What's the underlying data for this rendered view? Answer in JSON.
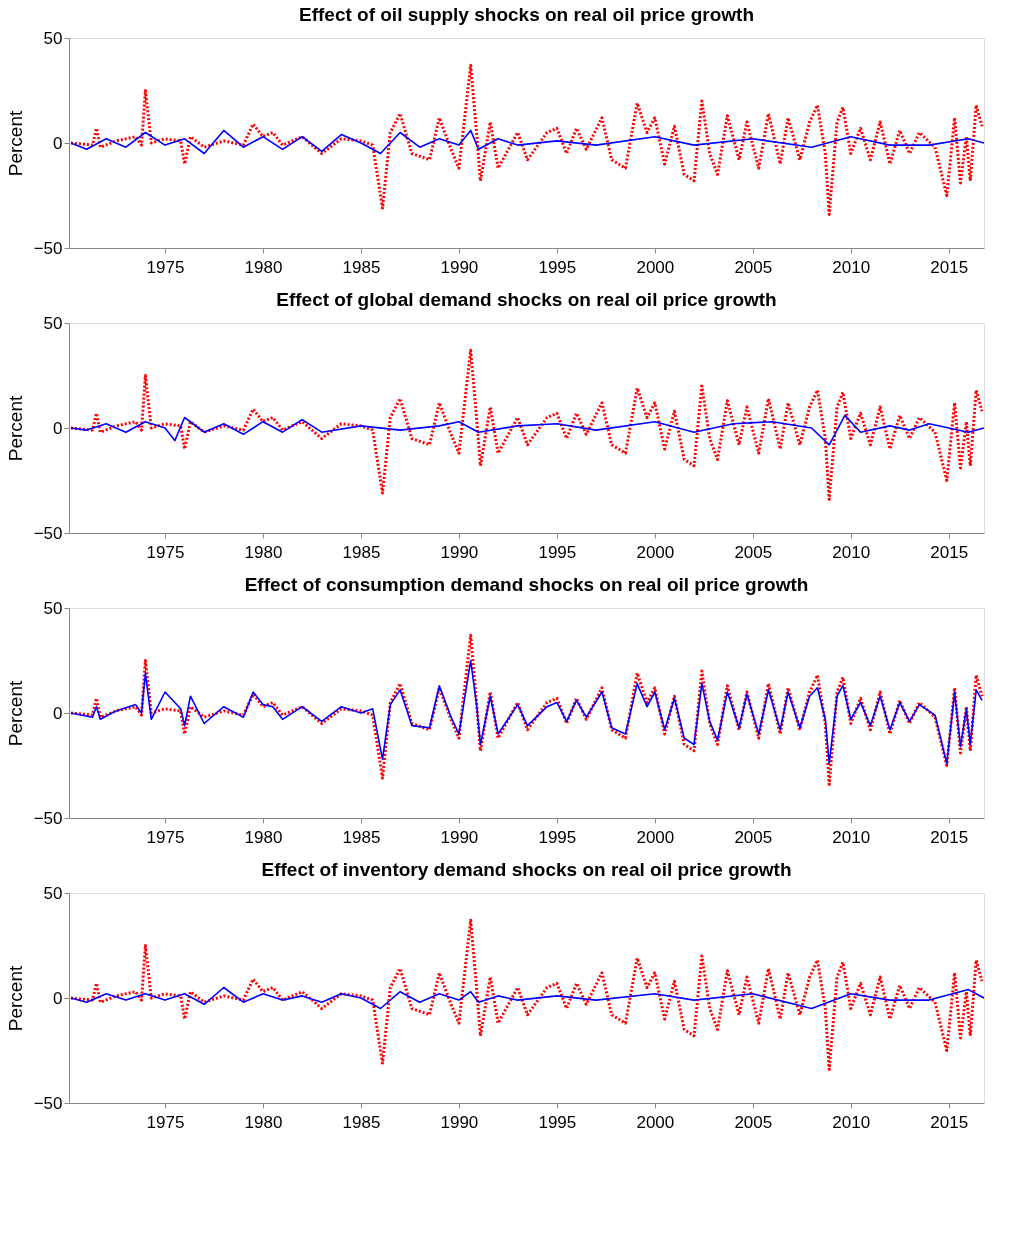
{
  "chart_data": [
    {
      "type": "line",
      "title": "Effect of oil supply shocks on real oil price growth",
      "ylabel": "Percent",
      "xlim": [
        1970.1,
        2016.8
      ],
      "ylim": [
        -50,
        50
      ],
      "xticks": [
        1975,
        1980,
        1985,
        1990,
        1995,
        2000,
        2005,
        2010,
        2015
      ],
      "yticks": [
        -50,
        0,
        50
      ],
      "grid": false,
      "series": [
        {
          "color": "#ff0000",
          "line_style": "dotted",
          "x": [
            1970.2,
            1971.3,
            1971.5,
            1971.7,
            1972.5,
            1973.5,
            1973.8,
            1974.0,
            1974.3,
            1975.0,
            1975.8,
            1976.0,
            1976.3,
            1977.0,
            1978.0,
            1979.0,
            1979.5,
            1980.0,
            1980.5,
            1981.0,
            1982.0,
            1983.0,
            1984.0,
            1985.0,
            1985.6,
            1986.1,
            1986.5,
            1987.0,
            1987.6,
            1988.5,
            1989.0,
            1989.6,
            1990.0,
            1990.6,
            1990.9,
            1991.1,
            1991.6,
            1992.0,
            1993.0,
            1993.5,
            1994.5,
            1995.0,
            1995.5,
            1996.0,
            1996.5,
            1997.3,
            1997.8,
            1998.5,
            1999.1,
            1999.6,
            2000.0,
            2000.5,
            2001.0,
            2001.5,
            2002.0,
            2002.4,
            2002.8,
            2003.2,
            2003.7,
            2004.3,
            2004.7,
            2005.3,
            2005.8,
            2006.4,
            2006.8,
            2007.4,
            2007.9,
            2008.3,
            2008.7,
            2008.9,
            2009.3,
            2009.6,
            2010.0,
            2010.5,
            2011.0,
            2011.5,
            2012.0,
            2012.5,
            2013.0,
            2013.5,
            2014.3,
            2014.9,
            2015.3,
            2015.6,
            2015.9,
            2016.1,
            2016.4,
            2016.7
          ],
          "values": [
            0,
            -1,
            7,
            -2,
            1,
            3,
            -1,
            25,
            0,
            2,
            1,
            -10,
            3,
            -2,
            1,
            -1,
            9,
            3,
            5,
            -1,
            3,
            -5,
            2,
            1,
            -1,
            -31,
            5,
            14,
            -5,
            -8,
            12,
            -3,
            -12,
            37,
            5,
            -18,
            10,
            -12,
            5,
            -8,
            5,
            7,
            -5,
            7,
            -3,
            12,
            -8,
            -12,
            19,
            5,
            12,
            -10,
            8,
            -15,
            -18,
            20,
            -5,
            -15,
            13,
            -8,
            10,
            -12,
            14,
            -10,
            12,
            -8,
            10,
            18,
            -5,
            -34,
            10,
            17,
            -5,
            7,
            -8,
            10,
            -10,
            6,
            -5,
            5,
            -2,
            -25,
            12,
            -19,
            3,
            -18,
            18,
            8
          ]
        },
        {
          "color": "#0000ff",
          "line_style": "solid",
          "x": [
            1970.2,
            1971,
            1972,
            1973,
            1974,
            1975,
            1976,
            1977,
            1978,
            1979,
            1980,
            1981,
            1982,
            1983,
            1984,
            1985,
            1986,
            1987,
            1988,
            1989,
            1990,
            1990.6,
            1991,
            1992,
            1993,
            1995,
            1997,
            2000,
            2002,
            2005,
            2008,
            2010,
            2012,
            2014,
            2016,
            2016.8
          ],
          "values": [
            0,
            -3,
            2,
            -2,
            5,
            -1,
            2,
            -5,
            6,
            -2,
            3,
            -3,
            3,
            -4,
            4,
            0,
            -5,
            5,
            -2,
            2,
            -1,
            6,
            -3,
            2,
            -1,
            1,
            -1,
            3,
            -1,
            2,
            -2,
            3,
            -1,
            -1,
            2,
            0
          ]
        }
      ]
    },
    {
      "type": "line",
      "title": "Effect of global demand shocks on real oil price growth",
      "ylabel": "Percent",
      "xlim": [
        1970.1,
        2016.8
      ],
      "ylim": [
        -50,
        50
      ],
      "xticks": [
        1975,
        1980,
        1985,
        1990,
        1995,
        2000,
        2005,
        2010,
        2015
      ],
      "yticks": [
        -50,
        0,
        50
      ],
      "grid": false,
      "series": [
        {
          "color": "#ff0000",
          "line_style": "dotted",
          "x": [
            1970.2,
            1971.3,
            1971.5,
            1971.7,
            1972.5,
            1973.5,
            1973.8,
            1974.0,
            1974.3,
            1975.0,
            1975.8,
            1976.0,
            1976.3,
            1977.0,
            1978.0,
            1979.0,
            1979.5,
            1980.0,
            1980.5,
            1981.0,
            1982.0,
            1983.0,
            1984.0,
            1985.0,
            1985.6,
            1986.1,
            1986.5,
            1987.0,
            1987.6,
            1988.5,
            1989.0,
            1989.6,
            1990.0,
            1990.6,
            1990.9,
            1991.1,
            1991.6,
            1992.0,
            1993.0,
            1993.5,
            1994.5,
            1995.0,
            1995.5,
            1996.0,
            1996.5,
            1997.3,
            1997.8,
            1998.5,
            1999.1,
            1999.6,
            2000.0,
            2000.5,
            2001.0,
            2001.5,
            2002.0,
            2002.4,
            2002.8,
            2003.2,
            2003.7,
            2004.3,
            2004.7,
            2005.3,
            2005.8,
            2006.4,
            2006.8,
            2007.4,
            2007.9,
            2008.3,
            2008.7,
            2008.9,
            2009.3,
            2009.6,
            2010.0,
            2010.5,
            2011.0,
            2011.5,
            2012.0,
            2012.5,
            2013.0,
            2013.5,
            2014.3,
            2014.9,
            2015.3,
            2015.6,
            2015.9,
            2016.1,
            2016.4,
            2016.7
          ],
          "values": [
            0,
            -1,
            7,
            -2,
            1,
            3,
            -1,
            25,
            0,
            2,
            1,
            -10,
            3,
            -2,
            1,
            -1,
            9,
            3,
            5,
            -1,
            3,
            -5,
            2,
            1,
            -1,
            -31,
            5,
            14,
            -5,
            -8,
            12,
            -3,
            -12,
            37,
            5,
            -18,
            10,
            -12,
            5,
            -8,
            5,
            7,
            -5,
            7,
            -3,
            12,
            -8,
            -12,
            19,
            5,
            12,
            -10,
            8,
            -15,
            -18,
            20,
            -5,
            -15,
            13,
            -8,
            10,
            -12,
            14,
            -10,
            12,
            -8,
            10,
            18,
            -5,
            -34,
            10,
            17,
            -5,
            7,
            -8,
            10,
            -10,
            6,
            -5,
            5,
            -2,
            -25,
            12,
            -19,
            3,
            -18,
            18,
            8
          ]
        },
        {
          "color": "#0000ff",
          "line_style": "solid",
          "x": [
            1970.2,
            1971,
            1972,
            1973,
            1974,
            1975,
            1975.5,
            1976,
            1977,
            1978,
            1979,
            1980,
            1981,
            1982,
            1983,
            1985,
            1987,
            1989,
            1990,
            1991,
            1993,
            1995,
            1997,
            2000,
            2002,
            2004,
            2006,
            2008,
            2008.9,
            2009.7,
            2010.5,
            2012,
            2013,
            2014,
            2016,
            2016.8
          ],
          "values": [
            0,
            -1,
            2,
            -2,
            3,
            0,
            -6,
            5,
            -2,
            2,
            -3,
            3,
            -2,
            4,
            -2,
            1,
            -1,
            1,
            3,
            -2,
            1,
            2,
            -1,
            3,
            -2,
            2,
            3,
            0,
            -8,
            6,
            -2,
            1,
            -1,
            2,
            -2,
            0
          ]
        }
      ]
    },
    {
      "type": "line",
      "title": "Effect of consumption demand shocks on real oil price growth",
      "ylabel": "Percent",
      "xlim": [
        1970.1,
        2016.8
      ],
      "ylim": [
        -50,
        50
      ],
      "xticks": [
        1975,
        1980,
        1985,
        1990,
        1995,
        2000,
        2005,
        2010,
        2015
      ],
      "yticks": [
        -50,
        0,
        50
      ],
      "grid": false,
      "series": [
        {
          "color": "#ff0000",
          "line_style": "dotted",
          "x": [
            1970.2,
            1971.3,
            1971.5,
            1971.7,
            1972.5,
            1973.5,
            1973.8,
            1974.0,
            1974.3,
            1975.0,
            1975.8,
            1976.0,
            1976.3,
            1977.0,
            1978.0,
            1979.0,
            1979.5,
            1980.0,
            1980.5,
            1981.0,
            1982.0,
            1983.0,
            1984.0,
            1985.0,
            1985.6,
            1986.1,
            1986.5,
            1987.0,
            1987.6,
            1988.5,
            1989.0,
            1989.6,
            1990.0,
            1990.6,
            1990.9,
            1991.1,
            1991.6,
            1992.0,
            1993.0,
            1993.5,
            1994.5,
            1995.0,
            1995.5,
            1996.0,
            1996.5,
            1997.3,
            1997.8,
            1998.5,
            1999.1,
            1999.6,
            2000.0,
            2000.5,
            2001.0,
            2001.5,
            2002.0,
            2002.4,
            2002.8,
            2003.2,
            2003.7,
            2004.3,
            2004.7,
            2005.3,
            2005.8,
            2006.4,
            2006.8,
            2007.4,
            2007.9,
            2008.3,
            2008.7,
            2008.9,
            2009.3,
            2009.6,
            2010.0,
            2010.5,
            2011.0,
            2011.5,
            2012.0,
            2012.5,
            2013.0,
            2013.5,
            2014.3,
            2014.9,
            2015.3,
            2015.6,
            2015.9,
            2016.1,
            2016.4,
            2016.7
          ],
          "values": [
            0,
            -1,
            7,
            -2,
            1,
            3,
            -1,
            25,
            0,
            2,
            1,
            -10,
            3,
            -2,
            1,
            -1,
            9,
            3,
            5,
            -1,
            3,
            -5,
            2,
            1,
            -1,
            -31,
            5,
            14,
            -5,
            -8,
            12,
            -3,
            -12,
            37,
            5,
            -18,
            10,
            -12,
            5,
            -8,
            5,
            7,
            -5,
            7,
            -3,
            12,
            -8,
            -12,
            19,
            5,
            12,
            -10,
            8,
            -15,
            -18,
            20,
            -5,
            -15,
            13,
            -8,
            10,
            -12,
            14,
            -10,
            12,
            -8,
            10,
            18,
            -5,
            -34,
            10,
            17,
            -5,
            7,
            -8,
            10,
            -10,
            6,
            -5,
            5,
            -2,
            -25,
            12,
            -19,
            3,
            -18,
            18,
            8
          ]
        },
        {
          "color": "#0000ff",
          "line_style": "solid",
          "x": [
            1970.2,
            1971.3,
            1971.5,
            1971.7,
            1972.5,
            1973.5,
            1973.8,
            1974.0,
            1974.3,
            1975.0,
            1975.8,
            1976.0,
            1976.3,
            1977.0,
            1978.0,
            1979.0,
            1979.5,
            1980.0,
            1980.5,
            1981.0,
            1982.0,
            1983.0,
            1984.0,
            1985.0,
            1985.6,
            1986.1,
            1986.5,
            1987.0,
            1987.6,
            1988.5,
            1989.0,
            1989.6,
            1990.0,
            1990.6,
            1990.9,
            1991.1,
            1991.6,
            1992.0,
            1993.0,
            1993.5,
            1994.5,
            1995.0,
            1995.5,
            1996.0,
            1996.5,
            1997.3,
            1997.8,
            1998.5,
            1999.1,
            1999.6,
            2000.0,
            2000.5,
            2001.0,
            2001.5,
            2002.0,
            2002.4,
            2002.8,
            2003.2,
            2003.7,
            2004.3,
            2004.7,
            2005.3,
            2005.8,
            2006.4,
            2006.8,
            2007.4,
            2007.9,
            2008.3,
            2008.7,
            2008.9,
            2009.3,
            2009.6,
            2010.0,
            2010.5,
            2011.0,
            2011.5,
            2012.0,
            2012.5,
            2013.0,
            2013.5,
            2014.3,
            2014.9,
            2015.3,
            2015.6,
            2015.9,
            2016.1,
            2016.4,
            2016.7
          ],
          "values": [
            0,
            -2,
            3,
            -3,
            1,
            4,
            0,
            19,
            -3,
            10,
            2,
            -6,
            8,
            -5,
            3,
            -2,
            10,
            4,
            3,
            -3,
            3,
            -4,
            3,
            0,
            2,
            -22,
            4,
            11,
            -6,
            -7,
            13,
            -2,
            -10,
            25,
            4,
            -15,
            8,
            -10,
            4,
            -6,
            3,
            5,
            -4,
            6,
            -2,
            10,
            -7,
            -10,
            14,
            3,
            10,
            -8,
            7,
            -12,
            -15,
            14,
            -4,
            -13,
            10,
            -7,
            9,
            -10,
            11,
            -8,
            10,
            -7,
            8,
            12,
            -3,
            -24,
            8,
            13,
            -3,
            5,
            -6,
            8,
            -8,
            5,
            -4,
            4,
            -1,
            -24,
            10,
            -16,
            2,
            -15,
            11,
            6
          ]
        }
      ]
    },
    {
      "type": "line",
      "title": "Effect of inventory demand shocks on real oil price growth",
      "ylabel": "Percent",
      "xlim": [
        1970.1,
        2016.8
      ],
      "ylim": [
        -50,
        50
      ],
      "xticks": [
        1975,
        1980,
        1985,
        1990,
        1995,
        2000,
        2005,
        2010,
        2015
      ],
      "yticks": [
        -50,
        0,
        50
      ],
      "grid": false,
      "series": [
        {
          "color": "#ff0000",
          "line_style": "dotted",
          "x": [
            1970.2,
            1971.3,
            1971.5,
            1971.7,
            1972.5,
            1973.5,
            1973.8,
            1974.0,
            1974.3,
            1975.0,
            1975.8,
            1976.0,
            1976.3,
            1977.0,
            1978.0,
            1979.0,
            1979.5,
            1980.0,
            1980.5,
            1981.0,
            1982.0,
            1983.0,
            1984.0,
            1985.0,
            1985.6,
            1986.1,
            1986.5,
            1987.0,
            1987.6,
            1988.5,
            1989.0,
            1989.6,
            1990.0,
            1990.6,
            1990.9,
            1991.1,
            1991.6,
            1992.0,
            1993.0,
            1993.5,
            1994.5,
            1995.0,
            1995.5,
            1996.0,
            1996.5,
            1997.3,
            1997.8,
            1998.5,
            1999.1,
            1999.6,
            2000.0,
            2000.5,
            2001.0,
            2001.5,
            2002.0,
            2002.4,
            2002.8,
            2003.2,
            2003.7,
            2004.3,
            2004.7,
            2005.3,
            2005.8,
            2006.4,
            2006.8,
            2007.4,
            2007.9,
            2008.3,
            2008.7,
            2008.9,
            2009.3,
            2009.6,
            2010.0,
            2010.5,
            2011.0,
            2011.5,
            2012.0,
            2012.5,
            2013.0,
            2013.5,
            2014.3,
            2014.9,
            2015.3,
            2015.6,
            2015.9,
            2016.1,
            2016.4,
            2016.7
          ],
          "values": [
            0,
            -1,
            7,
            -2,
            1,
            3,
            -1,
            25,
            0,
            2,
            1,
            -10,
            3,
            -2,
            1,
            -1,
            9,
            3,
            5,
            -1,
            3,
            -5,
            2,
            1,
            -1,
            -31,
            5,
            14,
            -5,
            -8,
            12,
            -3,
            -12,
            37,
            5,
            -18,
            10,
            -12,
            5,
            -8,
            5,
            7,
            -5,
            7,
            -3,
            12,
            -8,
            -12,
            19,
            5,
            12,
            -10,
            8,
            -15,
            -18,
            20,
            -5,
            -15,
            13,
            -8,
            10,
            -12,
            14,
            -10,
            12,
            -8,
            10,
            18,
            -5,
            -34,
            10,
            17,
            -5,
            7,
            -8,
            10,
            -10,
            6,
            -5,
            5,
            -2,
            -25,
            12,
            -19,
            3,
            -18,
            18,
            8
          ]
        },
        {
          "color": "#0000ff",
          "line_style": "solid",
          "x": [
            1970.2,
            1971,
            1972,
            1973,
            1974,
            1975,
            1976,
            1977,
            1978,
            1979,
            1980,
            1981,
            1982,
            1983,
            1984,
            1985,
            1986,
            1987,
            1988,
            1989,
            1990,
            1990.6,
            1991,
            1992,
            1993,
            1995,
            1997,
            2000,
            2002,
            2005,
            2008,
            2010,
            2012,
            2014,
            2016,
            2016.8
          ],
          "values": [
            0,
            -2,
            2,
            -1,
            2,
            -1,
            2,
            -3,
            5,
            -2,
            2,
            -1,
            1,
            -2,
            2,
            0,
            -5,
            3,
            -2,
            2,
            -1,
            3,
            -2,
            1,
            -1,
            1,
            -1,
            2,
            -1,
            2,
            -5,
            2,
            -1,
            -1,
            4,
            0
          ]
        }
      ]
    }
  ]
}
